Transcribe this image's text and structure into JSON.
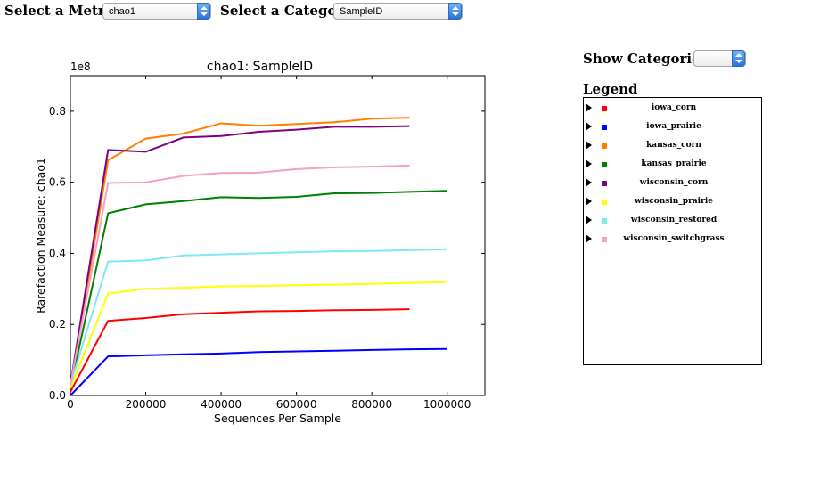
{
  "controls": {
    "metric_label": "Select a Metric:",
    "metric_value": "chao1",
    "category_label": "Select a Category:",
    "category_value": "SampleID",
    "show_categories_label": "Show Categories:",
    "show_categories_value": "",
    "legend_title": "Legend"
  },
  "chart_data": {
    "type": "line",
    "title": "chao1: SampleID",
    "xlabel": "Sequences Per Sample",
    "ylabel": "Rarefaction Measure: chao1",
    "y_multiplier_label": "1e8",
    "xlim": [
      0,
      1100000
    ],
    "ylim": [
      0,
      0.9
    ],
    "xticks": [
      0,
      200000,
      400000,
      600000,
      800000,
      1000000
    ],
    "xtick_labels": [
      "0",
      "200000",
      "400000",
      "600000",
      "800000",
      "1000000"
    ],
    "yticks": [
      0,
      0.2,
      0.4,
      0.6,
      0.8
    ],
    "ytick_labels": [
      "0.0",
      "0.2",
      "0.4",
      "0.6",
      "0.8"
    ],
    "grid": false,
    "legend_placement": "outside-right",
    "series": [
      {
        "name": "iowa_corn",
        "color": "#ff0000",
        "x": [
          0,
          100000,
          200000,
          300000,
          400000,
          500000,
          600000,
          700000,
          800000,
          900000
        ],
        "values": [
          0.01,
          0.21,
          0.218,
          0.229,
          0.233,
          0.237,
          0.238,
          0.24,
          0.241,
          0.243
        ]
      },
      {
        "name": "iowa_prairie",
        "color": "#0000ff",
        "x": [
          0,
          100000,
          200000,
          300000,
          400000,
          500000,
          600000,
          700000,
          800000,
          900000,
          1000000
        ],
        "values": [
          0.0,
          0.11,
          0.113,
          0.116,
          0.118,
          0.122,
          0.124,
          0.126,
          0.128,
          0.13,
          0.131
        ]
      },
      {
        "name": "kansas_corn",
        "color": "#ff8000",
        "x": [
          0,
          100000,
          200000,
          300000,
          400000,
          500000,
          600000,
          700000,
          800000,
          900000
        ],
        "values": [
          0.02,
          0.662,
          0.723,
          0.737,
          0.766,
          0.759,
          0.764,
          0.769,
          0.779,
          0.782
        ]
      },
      {
        "name": "kansas_prairie",
        "color": "#008000",
        "x": [
          0,
          100000,
          200000,
          300000,
          400000,
          500000,
          600000,
          700000,
          800000,
          900000,
          1000000
        ],
        "values": [
          0.02,
          0.513,
          0.538,
          0.547,
          0.558,
          0.556,
          0.559,
          0.569,
          0.57,
          0.573,
          0.576
        ]
      },
      {
        "name": "wisconsin_corn",
        "color": "#800080",
        "x": [
          0,
          100000,
          200000,
          300000,
          400000,
          500000,
          600000,
          700000,
          800000,
          900000
        ],
        "values": [
          0.03,
          0.691,
          0.686,
          0.726,
          0.73,
          0.742,
          0.748,
          0.756,
          0.756,
          0.758
        ]
      },
      {
        "name": "wisconsin_prairie",
        "color": "#ffff00",
        "x": [
          0,
          100000,
          200000,
          300000,
          400000,
          500000,
          600000,
          700000,
          800000,
          900000,
          1000000
        ],
        "values": [
          0.02,
          0.287,
          0.3,
          0.303,
          0.307,
          0.308,
          0.31,
          0.312,
          0.314,
          0.317,
          0.319
        ]
      },
      {
        "name": "wisconsin_restored",
        "color": "#80e8f0",
        "x": [
          0,
          100000,
          200000,
          300000,
          400000,
          500000,
          600000,
          700000,
          800000,
          900000,
          1000000
        ],
        "values": [
          0.03,
          0.377,
          0.38,
          0.394,
          0.397,
          0.4,
          0.403,
          0.406,
          0.407,
          0.409,
          0.412
        ]
      },
      {
        "name": "wisconsin_switchgrass",
        "color": "#f4a0c0",
        "x": [
          0,
          100000,
          200000,
          300000,
          400000,
          500000,
          600000,
          700000,
          800000,
          900000
        ],
        "values": [
          0.03,
          0.598,
          0.6,
          0.618,
          0.626,
          0.627,
          0.637,
          0.642,
          0.644,
          0.647
        ]
      }
    ]
  }
}
